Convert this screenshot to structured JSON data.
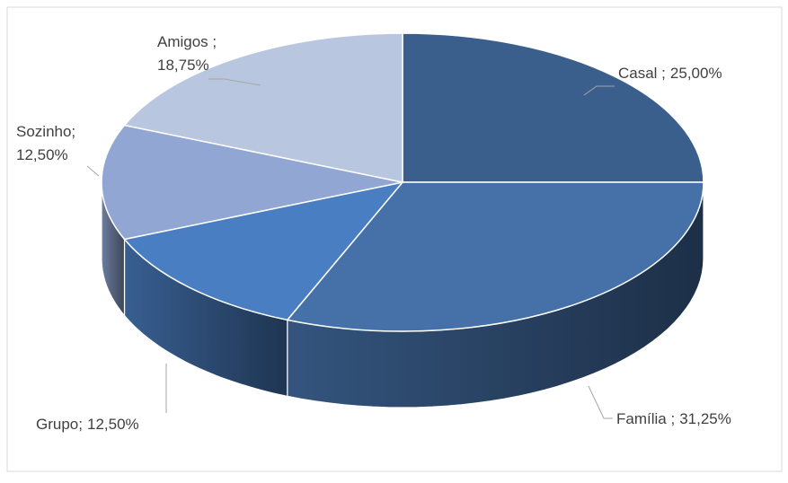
{
  "chart_data": {
    "type": "pie",
    "categories": [
      "Casal ;",
      "Família ;",
      "Grupo;",
      "Sozinho;",
      "Amigos ;"
    ],
    "values": [
      25,
      31.25,
      12.5,
      12.5,
      18.75
    ],
    "value_labels": [
      "25,00%",
      "31,25%",
      "12,50%",
      "12,50%",
      "18,75%"
    ],
    "colors": [
      "#3b5f8d",
      "#4571a8",
      "#4a7ec2",
      "#91a6d2",
      "#b8c6df"
    ]
  }
}
